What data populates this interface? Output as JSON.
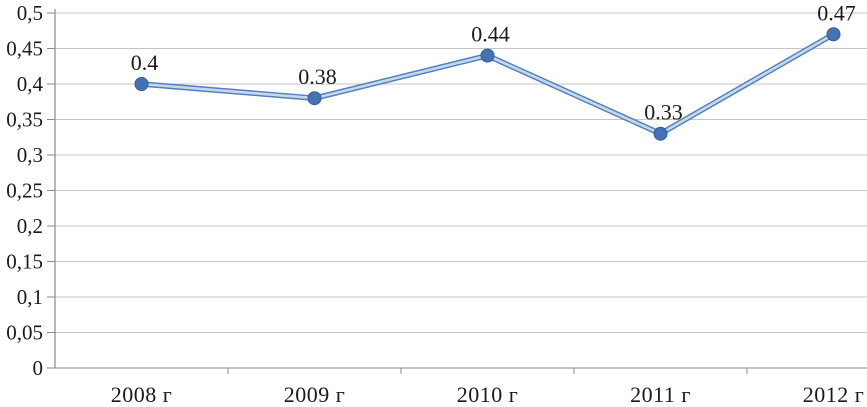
{
  "chart_data": {
    "type": "line",
    "categories": [
      "2008 г",
      "2009 г",
      "2010 г",
      "2011 г",
      "2012 г"
    ],
    "values": [
      0.4,
      0.38,
      0.44,
      0.33,
      0.47
    ],
    "data_labels": [
      "0.4",
      "0.38",
      "0.44",
      "0.33",
      "0.47"
    ],
    "title": "",
    "xlabel": "",
    "ylabel": "",
    "ylim": [
      0,
      0.5
    ],
    "y_step": 0.05,
    "y_tick_labels": [
      "0",
      "0,05",
      "0,1",
      "0,15",
      "0,2",
      "0,25",
      "0,3",
      "0,35",
      "0,4",
      "0,45",
      "0,5"
    ],
    "grid": "horizontal",
    "legend": "none",
    "marker": "circle",
    "colors": {
      "line_outer": "#4f81bd",
      "line_inner": "#c8d8ec",
      "marker_fill": "#4473b5",
      "marker_stroke": "#2f5b9d",
      "gridline": "#c4c4c4",
      "axis": "#8a8a8a",
      "text": "#1a1a1a",
      "background": "#ffffff"
    }
  }
}
